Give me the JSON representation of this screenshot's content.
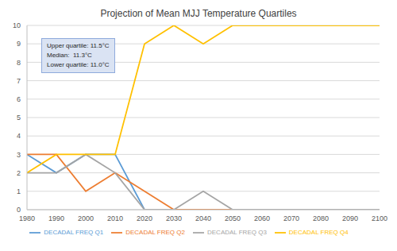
{
  "chart_data": {
    "type": "line",
    "title": "Projection of Mean MJJ Temperature Quartiles",
    "annotations": [
      "Upper quartile: 11.5°C",
      "Median:  11.3°C",
      "Lower quartile: 11.0°C"
    ],
    "x": [
      1980,
      1990,
      2000,
      2010,
      2020,
      2030,
      2040,
      2050,
      2060,
      2070,
      2080,
      2090,
      2100
    ],
    "xlim": [
      1980,
      2100
    ],
    "xticks": [
      1980,
      1990,
      2000,
      2010,
      2020,
      2030,
      2040,
      2050,
      2060,
      2070,
      2080,
      2090,
      2100
    ],
    "ylim": [
      0,
      10
    ],
    "yticks": [
      0,
      1,
      2,
      3,
      4,
      5,
      6,
      7,
      8,
      9,
      10
    ],
    "grid": true,
    "legend": "bottom",
    "series": [
      {
        "name": "DECADAL FREQ Q1",
        "color": "#5b9bd5",
        "values": [
          3,
          2,
          3,
          3,
          0,
          0,
          0,
          0,
          0,
          0,
          0,
          0,
          0
        ]
      },
      {
        "name": "DECADAL FREQ Q2",
        "color": "#ed7d31",
        "values": [
          3,
          3,
          1,
          2,
          1,
          0,
          0,
          0,
          0,
          0,
          0,
          0,
          0
        ]
      },
      {
        "name": "DECADAL FREQ Q3",
        "color": "#a5a5a5",
        "values": [
          2,
          2,
          3,
          2,
          0,
          0,
          1,
          0,
          0,
          0,
          0,
          0,
          0
        ]
      },
      {
        "name": "DECADAL FREQ Q4",
        "color": "#ffc000",
        "values": [
          2,
          3,
          3,
          3,
          9,
          10,
          9,
          10,
          10,
          10,
          10,
          10,
          10
        ]
      }
    ]
  }
}
